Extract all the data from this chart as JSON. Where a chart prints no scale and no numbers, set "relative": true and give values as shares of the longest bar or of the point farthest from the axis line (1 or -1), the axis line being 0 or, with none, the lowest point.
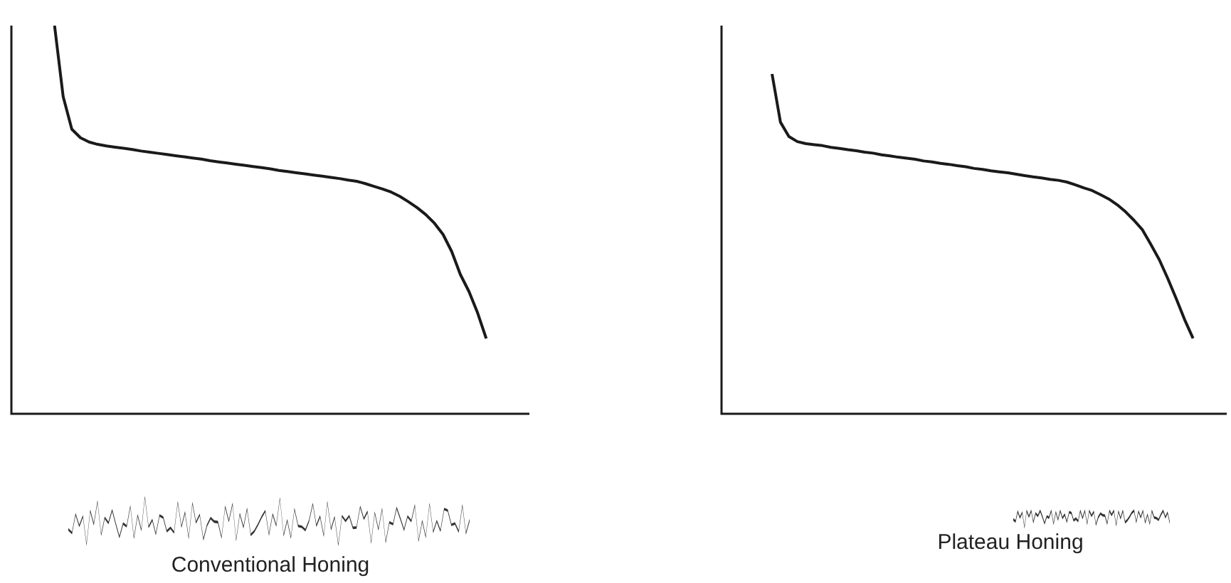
{
  "chart_data": [
    {
      "type": "line",
      "relative": true,
      "categories": [
        null,
        null,
        null,
        null,
        null,
        null,
        null,
        null,
        null,
        null,
        null,
        null,
        null,
        null,
        null,
        null,
        null,
        null,
        null,
        null,
        null,
        null,
        null,
        null,
        null,
        null,
        null,
        null,
        null,
        null,
        null,
        null,
        null,
        null,
        null,
        null,
        null,
        null,
        null,
        null,
        null,
        null,
        null,
        null,
        null,
        null,
        null,
        null,
        null,
        null,
        null,
        null,
        null,
        null,
        null,
        null,
        null,
        null,
        null,
        null,
        null
      ],
      "series": [
        {
          "color": "#1a1a1a",
          "values": [
            null,
            null,
            null,
            null,
            null,
            1.0,
            0.817,
            0.733,
            0.711,
            0.7,
            0.694,
            0.69,
            0.687,
            0.684,
            0.681,
            0.677,
            0.674,
            0.671,
            0.668,
            0.665,
            0.662,
            0.659,
            0.656,
            0.652,
            0.649,
            0.646,
            0.643,
            0.64,
            0.637,
            0.634,
            0.631,
            0.627,
            0.624,
            0.621,
            0.618,
            0.615,
            0.612,
            0.609,
            0.606,
            0.602,
            0.599,
            0.593,
            0.586,
            0.579,
            0.571,
            0.56,
            0.546,
            0.531,
            0.513,
            0.491,
            0.462,
            0.418,
            0.359,
            0.315,
            0.26,
            0.194,
            null,
            null,
            null,
            null,
            null
          ]
        }
      ],
      "annotations": [
        "Conventional Honing"
      ]
    },
    {
      "type": "line",
      "relative": true,
      "categories": [
        null,
        null,
        null,
        null,
        null,
        null,
        null,
        null,
        null,
        null,
        null,
        null,
        null,
        null,
        null,
        null,
        null,
        null,
        null,
        null,
        null,
        null,
        null,
        null,
        null,
        null,
        null,
        null,
        null,
        null,
        null,
        null,
        null,
        null,
        null,
        null,
        null,
        null,
        null,
        null,
        null,
        null,
        null,
        null,
        null,
        null,
        null,
        null,
        null,
        null,
        null,
        null,
        null,
        null,
        null,
        null,
        null,
        null,
        null,
        null,
        null
      ],
      "series": [
        {
          "color": "#1a1a1a",
          "values": [
            null,
            null,
            null,
            null,
            null,
            null,
            1,
            0.858,
            0.816,
            0.801,
            0.795,
            0.792,
            0.789,
            0.784,
            0.781,
            0.777,
            0.774,
            0.77,
            0.767,
            0.762,
            0.759,
            0.755,
            0.752,
            0.749,
            0.744,
            0.741,
            0.737,
            0.734,
            0.73,
            0.727,
            0.722,
            0.719,
            0.715,
            0.712,
            0.709,
            0.705,
            0.701,
            0.697,
            0.694,
            0.69,
            0.687,
            0.682,
            0.674,
            0.665,
            0.657,
            0.645,
            0.632,
            0.615,
            0.594,
            0.569,
            0.541,
            0.498,
            0.453,
            0.398,
            0.339,
            0.277,
            0.222,
            null,
            null,
            null,
            null
          ]
        }
      ],
      "annotations": [
        "Plateau Honing"
      ]
    }
  ]
}
